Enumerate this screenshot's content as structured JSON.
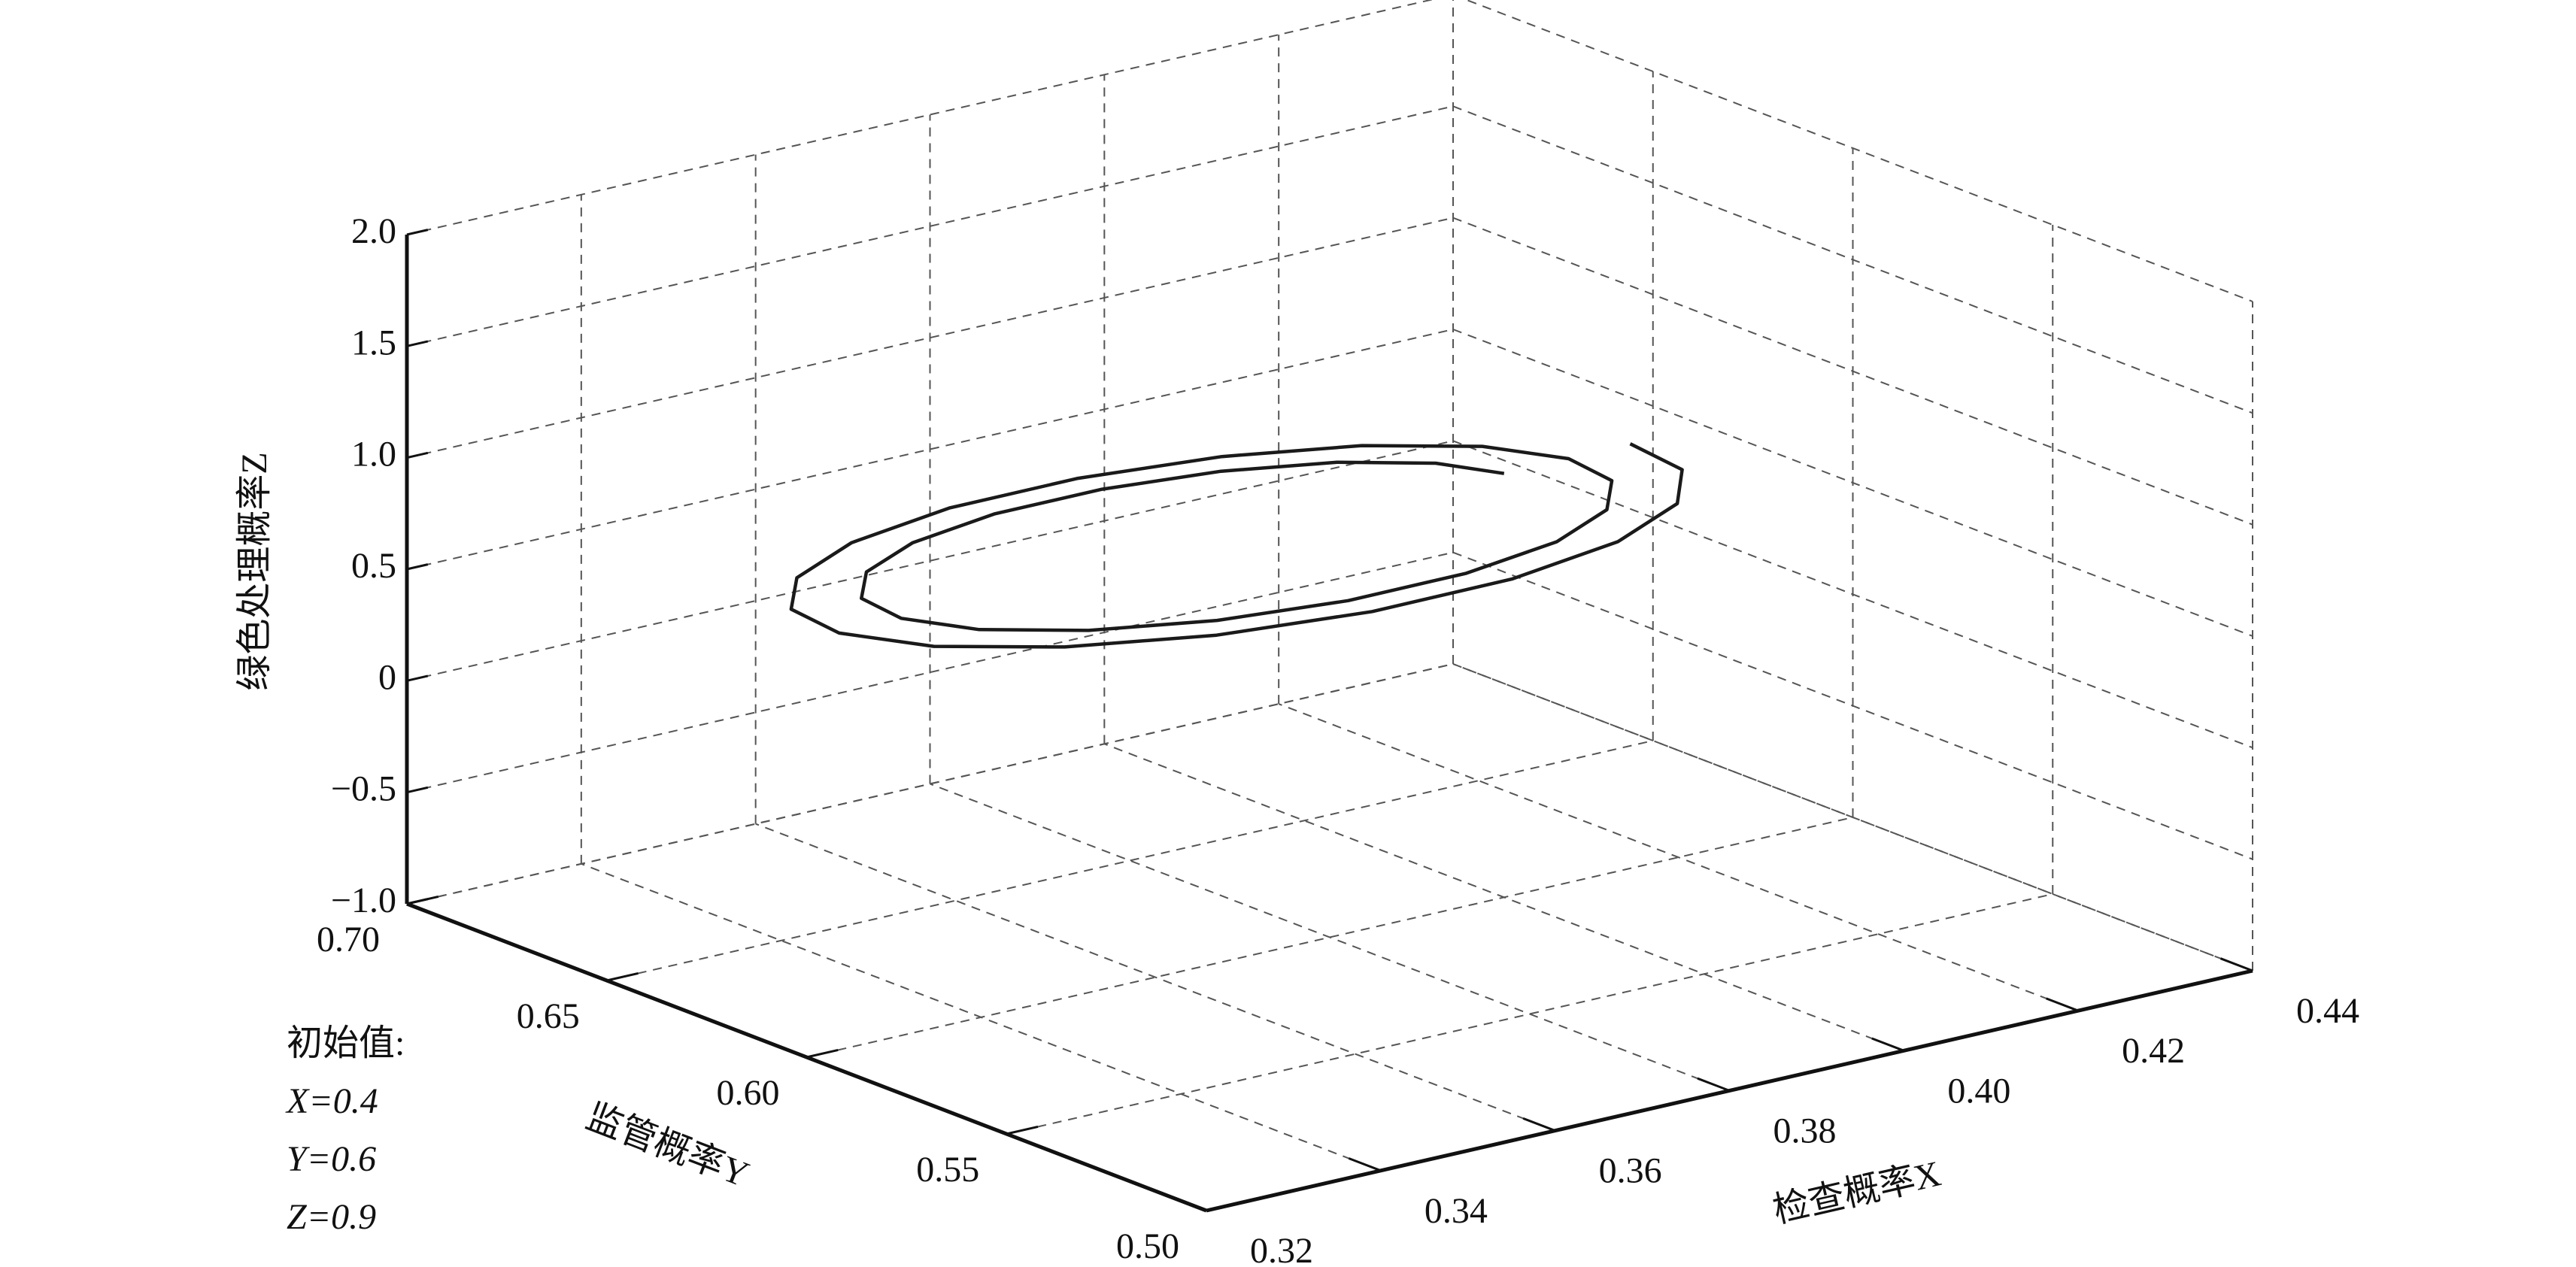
{
  "chart_data": {
    "type": "line3d",
    "xlabel": "检查概率X",
    "ylabel": "监管概率Y",
    "zlabel": "绿色处理概率Z",
    "annotation": [
      "初始值:",
      "X=0.4",
      "Y=0.6",
      "Z=0.9"
    ],
    "xlim": [
      0.32,
      0.44
    ],
    "xticks": [
      0.32,
      0.34,
      0.36,
      0.38,
      {
        "value": 0.4,
        "label": "0.40"
      },
      0.42,
      0.44
    ],
    "ylim": [
      0.5,
      0.7
    ],
    "yticks": [
      {
        "value": 0.5,
        "label": "0.50"
      },
      0.55,
      {
        "value": 0.6,
        "label": "0.60"
      },
      0.65,
      {
        "value": 0.7,
        "label": "0.70"
      }
    ],
    "zlim": [
      -1,
      2
    ],
    "zticks": [
      {
        "value": -1,
        "label": "−1.0"
      },
      {
        "value": -0.5,
        "label": "−0.5"
      },
      0,
      0.5,
      {
        "value": 1,
        "label": "1.0"
      },
      1.5,
      {
        "value": 2,
        "label": "2.0"
      }
    ],
    "grid": true,
    "series": [
      {
        "color": "#1a1a1a",
        "x": [
          0.4,
          0.397,
          0.3901,
          0.3801,
          0.3682,
          0.3559,
          0.3446,
          0.3358,
          0.3305,
          0.3296,
          0.3331,
          0.3408,
          0.3519,
          0.365,
          0.3786,
          0.391,
          0.4006,
          0.4064,
          0.4074,
          0.4035,
          0.395,
          0.3829,
          0.3685,
          0.3537,
          0.3402,
          0.3297,
          0.3234,
          0.3224,
          0.3267,
          0.336,
          0.3491,
          0.3647,
          0.3808,
          0.3954,
          0.4068,
          0.4135,
          0.4146
        ],
        "y": [
          0.6,
          0.6106,
          0.6202,
          0.6274,
          0.6312,
          0.6312,
          0.6271,
          0.6195,
          0.6092,
          0.5973,
          0.5854,
          0.5748,
          0.5669,
          0.5627,
          0.5628,
          0.5672,
          0.5756,
          0.587,
          0.6,
          0.6131,
          0.6247,
          0.6333,
          0.6379,
          0.6378,
          0.6328,
          0.6236,
          0.6113,
          0.5971,
          0.5828,
          0.5703,
          0.5609,
          0.556,
          0.5562,
          0.5615,
          0.5715,
          0.5849,
          0.6003
        ],
        "z": [
          0.9,
          0.9,
          0.9,
          0.9,
          0.9,
          0.9,
          0.9,
          0.9,
          0.9,
          0.9,
          0.9,
          0.9,
          0.9,
          0.9,
          0.9,
          0.9,
          0.9,
          0.9,
          0.9,
          0.9,
          0.9,
          0.9,
          0.9,
          0.9,
          0.9,
          0.9,
          0.9,
          0.9,
          0.9,
          0.9,
          0.9,
          0.9,
          0.9,
          0.9,
          0.9,
          0.9,
          0.9
        ]
      }
    ]
  }
}
